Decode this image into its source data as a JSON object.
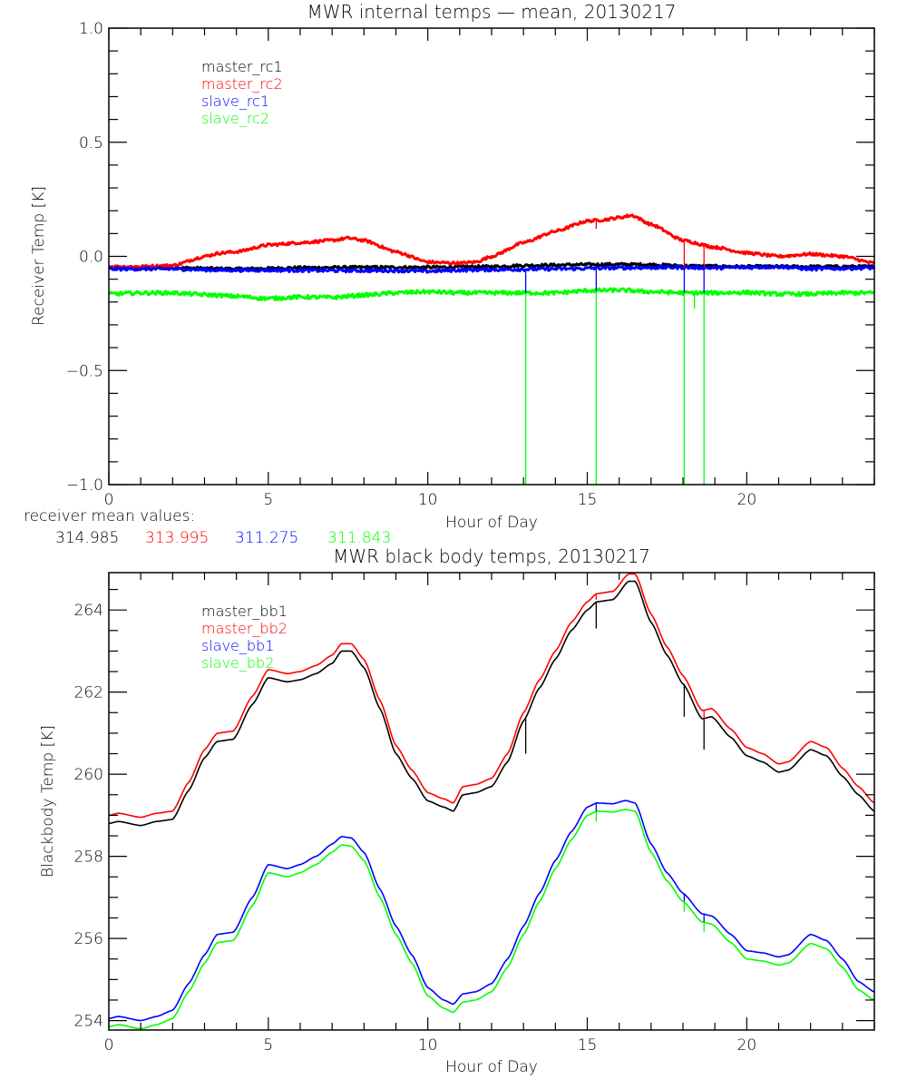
{
  "chart_data": [
    {
      "type": "line",
      "title": "MWR internal temps — mean, 20130217",
      "xlabel": "Hour of Day",
      "ylabel": "Receiver Temp [K]",
      "xlim": [
        0,
        24
      ],
      "ylim": [
        -1.0,
        1.0
      ],
      "xticks": [
        0,
        5,
        10,
        15,
        20
      ],
      "xtick_labels": [
        "0",
        "5",
        "10",
        "15",
        "20"
      ],
      "xminor_step": 1,
      "yticks": [
        1.0,
        0.5,
        0.0,
        -0.5,
        -1.0
      ],
      "ytick_labels": [
        "1.0",
        "0.5",
        "0.0",
        "−0.5",
        "−1.0"
      ],
      "yminor_step": 0.1,
      "grid": false,
      "legend_position": "top-left",
      "series": [
        {
          "name": "master_rc1",
          "color": "#000000",
          "noise": 0.006,
          "x": [
            0,
            2,
            4,
            6,
            8,
            10,
            12,
            13,
            14,
            15,
            16,
            17,
            18,
            20,
            22,
            24
          ],
          "y": [
            -0.05,
            -0.05,
            -0.055,
            -0.05,
            -0.048,
            -0.048,
            -0.045,
            -0.04,
            -0.038,
            -0.036,
            -0.035,
            -0.036,
            -0.042,
            -0.045,
            -0.045,
            -0.045
          ]
        },
        {
          "name": "master_rc2",
          "color": "#ff0000",
          "noise": 0.006,
          "x": [
            0,
            1,
            2,
            3,
            3.5,
            4,
            5,
            6,
            7,
            7.5,
            8,
            9,
            10,
            10.5,
            11,
            11.5,
            12,
            13,
            14,
            15,
            15.5,
            16,
            16.4,
            17,
            18,
            19,
            20,
            21,
            22,
            23,
            24
          ],
          "y": [
            -0.045,
            -0.045,
            -0.04,
            0.0,
            0.015,
            0.02,
            0.05,
            0.06,
            0.07,
            0.08,
            0.07,
            0.02,
            -0.025,
            -0.028,
            -0.03,
            -0.025,
            0.0,
            0.06,
            0.11,
            0.155,
            0.16,
            0.17,
            0.18,
            0.14,
            0.07,
            0.04,
            0.015,
            0.0,
            0.01,
            0.0,
            -0.03
          ]
        },
        {
          "name": "slave_rc1",
          "color": "#0000ff",
          "noise": 0.007,
          "x": [
            0,
            2,
            3.5,
            5,
            7,
            9,
            10,
            11,
            12,
            14,
            16,
            18,
            19,
            20,
            21,
            22,
            24
          ],
          "y": [
            -0.055,
            -0.055,
            -0.06,
            -0.06,
            -0.062,
            -0.062,
            -0.065,
            -0.06,
            -0.058,
            -0.055,
            -0.05,
            -0.048,
            -0.05,
            -0.048,
            -0.045,
            -0.055,
            -0.05
          ]
        },
        {
          "name": "slave_rc2",
          "color": "#00ff00",
          "noise": 0.008,
          "x": [
            0,
            1,
            2,
            3,
            4,
            5,
            6,
            7,
            8,
            9,
            10,
            11,
            12,
            14,
            15,
            16,
            17,
            18,
            19,
            20,
            21,
            22,
            23,
            24
          ],
          "y": [
            -0.165,
            -0.16,
            -0.16,
            -0.168,
            -0.175,
            -0.185,
            -0.178,
            -0.18,
            -0.17,
            -0.16,
            -0.155,
            -0.16,
            -0.16,
            -0.16,
            -0.15,
            -0.148,
            -0.155,
            -0.16,
            -0.16,
            -0.158,
            -0.165,
            -0.165,
            -0.16,
            -0.16
          ]
        }
      ],
      "spikes": [
        {
          "x": 13.07,
          "color": "#00ff00",
          "y_from": -0.16,
          "y_to": -1.0
        },
        {
          "x": 13.07,
          "color": "#0000ff",
          "y_from": -0.06,
          "y_to": -0.16
        },
        {
          "x": 15.28,
          "color": "#00ff00",
          "y_from": -0.15,
          "y_to": -1.0
        },
        {
          "x": 15.28,
          "color": "#0000ff",
          "y_from": -0.055,
          "y_to": -0.15
        },
        {
          "x": 15.28,
          "color": "#ff0000",
          "y_from": 0.158,
          "y_to": 0.12
        },
        {
          "x": 18.04,
          "color": "#00ff00",
          "y_from": -0.16,
          "y_to": -1.0
        },
        {
          "x": 18.04,
          "color": "#0000ff",
          "y_from": -0.05,
          "y_to": -0.16
        },
        {
          "x": 18.04,
          "color": "#ff0000",
          "y_from": 0.07,
          "y_to": -0.05
        },
        {
          "x": 18.36,
          "color": "#00ff00",
          "y_from": -0.16,
          "y_to": -0.23
        },
        {
          "x": 18.66,
          "color": "#00ff00",
          "y_from": -0.16,
          "y_to": -1.0
        },
        {
          "x": 18.66,
          "color": "#0000ff",
          "y_from": -0.05,
          "y_to": -0.16
        },
        {
          "x": 18.66,
          "color": "#ff0000",
          "y_from": 0.05,
          "y_to": -0.05
        }
      ],
      "annotation": {
        "label": "receiver mean values:",
        "values": [
          {
            "text": "314.985",
            "color": "#000000"
          },
          {
            "text": "313.995",
            "color": "#ff0000"
          },
          {
            "text": "311.275",
            "color": "#0000ff"
          },
          {
            "text": "311.843",
            "color": "#00ff00"
          }
        ]
      }
    },
    {
      "type": "line",
      "title": "MWR black body temps, 20130217",
      "xlabel": "Hour of Day",
      "ylabel": "Blackbody Temp [K]",
      "xlim": [
        0,
        24
      ],
      "ylim": [
        253.77,
        264.91
      ],
      "xticks": [
        0,
        5,
        10,
        15,
        20
      ],
      "xtick_labels": [
        "0",
        "5",
        "10",
        "15",
        "20"
      ],
      "xminor_step": 1,
      "yticks": [
        254,
        256,
        258,
        260,
        262,
        264
      ],
      "ytick_labels": [
        "254",
        "256",
        "258",
        "260",
        "262",
        "264"
      ],
      "yminor_step": 0.5,
      "grid": false,
      "legend_position": "top-left",
      "series": [
        {
          "name": "master_bb1",
          "color": "#000000",
          "x": [
            0,
            0.3,
            1,
            1.5,
            2,
            2.5,
            3,
            3.4,
            3.9,
            4.5,
            5,
            5.6,
            6,
            6.5,
            7,
            7.3,
            7.6,
            8,
            8.5,
            9,
            9.5,
            10,
            10.5,
            10.8,
            11.1,
            11.5,
            12,
            12.5,
            13,
            13.5,
            14,
            14.5,
            15,
            15.3,
            15.8,
            16.3,
            16.5,
            17,
            17.5,
            18,
            18.6,
            18.9,
            19.5,
            20,
            20.5,
            21,
            21.3,
            22,
            22.5,
            23,
            23.5,
            24
          ],
          "y": [
            258.8,
            258.85,
            258.75,
            258.85,
            258.9,
            259.6,
            260.4,
            260.8,
            260.85,
            261.7,
            262.35,
            262.25,
            262.3,
            262.45,
            262.7,
            263.0,
            263.0,
            262.6,
            261.6,
            260.5,
            259.9,
            259.35,
            259.2,
            259.1,
            259.5,
            259.55,
            259.7,
            260.3,
            261.3,
            262.1,
            262.8,
            263.5,
            264.0,
            264.2,
            264.25,
            264.7,
            264.7,
            263.7,
            262.9,
            262.2,
            261.35,
            261.4,
            260.9,
            260.45,
            260.3,
            260.05,
            260.1,
            260.6,
            260.45,
            259.95,
            259.5,
            259.1
          ]
        },
        {
          "name": "master_bb2",
          "color": "#ff0000",
          "x": [
            0,
            0.3,
            1,
            1.5,
            2,
            2.5,
            3,
            3.4,
            3.9,
            4.5,
            5,
            5.6,
            6,
            6.5,
            7,
            7.3,
            7.6,
            8,
            8.5,
            9,
            9.5,
            10,
            10.5,
            10.8,
            11.1,
            11.5,
            12,
            12.5,
            13,
            13.5,
            14,
            14.5,
            15,
            15.3,
            15.8,
            16.3,
            16.5,
            17,
            17.5,
            18,
            18.6,
            18.9,
            19.5,
            20,
            20.5,
            21,
            21.3,
            22,
            22.5,
            23,
            23.5,
            24
          ],
          "y": [
            259.0,
            259.05,
            258.95,
            259.05,
            259.1,
            259.8,
            260.6,
            261.0,
            261.05,
            261.9,
            262.55,
            262.45,
            262.5,
            262.65,
            262.9,
            263.18,
            263.18,
            262.8,
            261.8,
            260.7,
            260.1,
            259.55,
            259.4,
            259.3,
            259.7,
            259.75,
            259.9,
            260.5,
            261.5,
            262.3,
            263.0,
            263.7,
            264.2,
            264.4,
            264.45,
            264.88,
            264.88,
            263.9,
            263.1,
            262.4,
            261.55,
            261.6,
            261.1,
            260.65,
            260.5,
            260.25,
            260.3,
            260.8,
            260.65,
            260.15,
            259.7,
            259.3
          ]
        },
        {
          "name": "slave_bb1",
          "color": "#0000ff",
          "x": [
            0,
            0.3,
            1,
            1.5,
            2,
            2.5,
            3,
            3.4,
            3.9,
            4.5,
            5,
            5.6,
            6,
            6.5,
            7,
            7.3,
            7.6,
            8,
            8.5,
            9,
            9.5,
            10,
            10.5,
            10.8,
            11.1,
            11.5,
            12,
            12.5,
            13,
            13.5,
            14,
            14.5,
            15,
            15.3,
            15.8,
            16.2,
            16.5,
            17,
            17.5,
            18,
            18.6,
            18.9,
            19.5,
            20,
            20.5,
            21,
            21.3,
            22,
            22.5,
            23,
            23.5,
            24
          ],
          "y": [
            254.05,
            254.1,
            254.0,
            254.1,
            254.25,
            254.9,
            255.6,
            256.1,
            256.15,
            257.0,
            257.8,
            257.7,
            257.8,
            258.0,
            258.3,
            258.48,
            258.45,
            258.1,
            257.2,
            256.3,
            255.6,
            254.8,
            254.5,
            254.4,
            254.65,
            254.7,
            254.9,
            255.5,
            256.3,
            257.1,
            257.9,
            258.6,
            259.2,
            259.3,
            259.28,
            259.36,
            259.3,
            258.3,
            257.6,
            257.1,
            256.6,
            256.55,
            256.1,
            255.7,
            255.65,
            255.55,
            255.6,
            256.1,
            255.95,
            255.5,
            254.95,
            254.7
          ]
        },
        {
          "name": "slave_bb2",
          "color": "#00ff00",
          "x": [
            0,
            0.3,
            1,
            1.5,
            2,
            2.5,
            3,
            3.4,
            3.9,
            4.5,
            5,
            5.6,
            6,
            6.5,
            7,
            7.3,
            7.6,
            8,
            8.5,
            9,
            9.5,
            10,
            10.5,
            10.8,
            11.1,
            11.5,
            12,
            12.5,
            13,
            13.5,
            14,
            14.5,
            15,
            15.3,
            15.8,
            16.2,
            16.5,
            17,
            17.5,
            18,
            18.6,
            18.9,
            19.5,
            20,
            20.5,
            21,
            21.3,
            22,
            22.5,
            23,
            23.5,
            24
          ],
          "y": [
            253.85,
            253.9,
            253.8,
            253.9,
            254.05,
            254.7,
            255.4,
            255.9,
            255.95,
            256.8,
            257.6,
            257.5,
            257.6,
            257.8,
            258.1,
            258.28,
            258.25,
            257.9,
            257.0,
            256.1,
            255.4,
            254.6,
            254.3,
            254.2,
            254.45,
            254.5,
            254.7,
            255.3,
            256.1,
            256.9,
            257.7,
            258.4,
            259.0,
            259.1,
            259.08,
            259.14,
            259.1,
            258.1,
            257.4,
            256.9,
            256.4,
            256.35,
            255.9,
            255.5,
            255.45,
            255.35,
            255.4,
            255.88,
            255.75,
            255.3,
            254.75,
            254.5
          ]
        }
      ],
      "spikes": [
        {
          "x": 13.07,
          "color": "#000000",
          "y_from": 261.35,
          "y_to": 260.5
        },
        {
          "x": 15.28,
          "color": "#000000",
          "y_from": 264.2,
          "y_to": 263.55
        },
        {
          "x": 15.28,
          "color": "#ff0000",
          "y_from": 264.4,
          "y_to": 264.25
        },
        {
          "x": 15.28,
          "color": "#0000ff",
          "y_from": 259.3,
          "y_to": 259.1
        },
        {
          "x": 15.28,
          "color": "#00ff00",
          "y_from": 259.1,
          "y_to": 258.85
        },
        {
          "x": 18.04,
          "color": "#000000",
          "y_from": 262.2,
          "y_to": 261.4
        },
        {
          "x": 18.04,
          "color": "#0000ff",
          "y_from": 257.1,
          "y_to": 256.9
        },
        {
          "x": 18.04,
          "color": "#00ff00",
          "y_from": 256.9,
          "y_to": 256.65
        },
        {
          "x": 18.66,
          "color": "#000000",
          "y_from": 261.35,
          "y_to": 260.6
        },
        {
          "x": 18.66,
          "color": "#ff0000",
          "y_from": 261.55,
          "y_to": 261.35
        },
        {
          "x": 18.66,
          "color": "#0000ff",
          "y_from": 256.6,
          "y_to": 256.4
        },
        {
          "x": 18.66,
          "color": "#00ff00",
          "y_from": 256.4,
          "y_to": 256.15
        }
      ]
    }
  ]
}
